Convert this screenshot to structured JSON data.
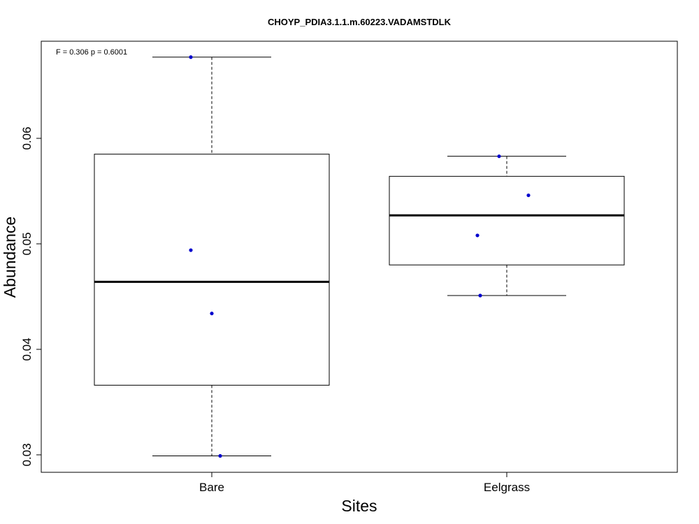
{
  "chart_data": {
    "type": "boxplot",
    "title": "CHOYP_PDIA3.1.1.m.60223.VADAMSTDLK",
    "xlabel": "Sites",
    "ylabel": "Abundance",
    "annotation": "F = 0.306 p = 0.6001",
    "categories": [
      "Bare",
      "Eelgrass"
    ],
    "ylim": [
      0.0285,
      0.0694
    ],
    "yticks": [
      0.03,
      0.04,
      0.05,
      0.06
    ],
    "ytick_labels": [
      "0.03",
      "0.04",
      "0.05",
      "0.06"
    ],
    "grid": false,
    "boxes": [
      {
        "category": "Bare",
        "min": 0.0299,
        "q1": 0.0366,
        "median": 0.0464,
        "q3": 0.0585,
        "max": 0.0677
      },
      {
        "category": "Eelgrass",
        "min": 0.0451,
        "q1": 0.048,
        "median": 0.0527,
        "q3": 0.0564,
        "max": 0.0583
      }
    ],
    "points": [
      {
        "category": "Bare",
        "values": [
          0.0677,
          0.0494,
          0.0434,
          0.0299
        ]
      },
      {
        "category": "Eelgrass",
        "values": [
          0.0583,
          0.0546,
          0.0508,
          0.0451
        ]
      }
    ],
    "point_color": "#0000CD"
  }
}
